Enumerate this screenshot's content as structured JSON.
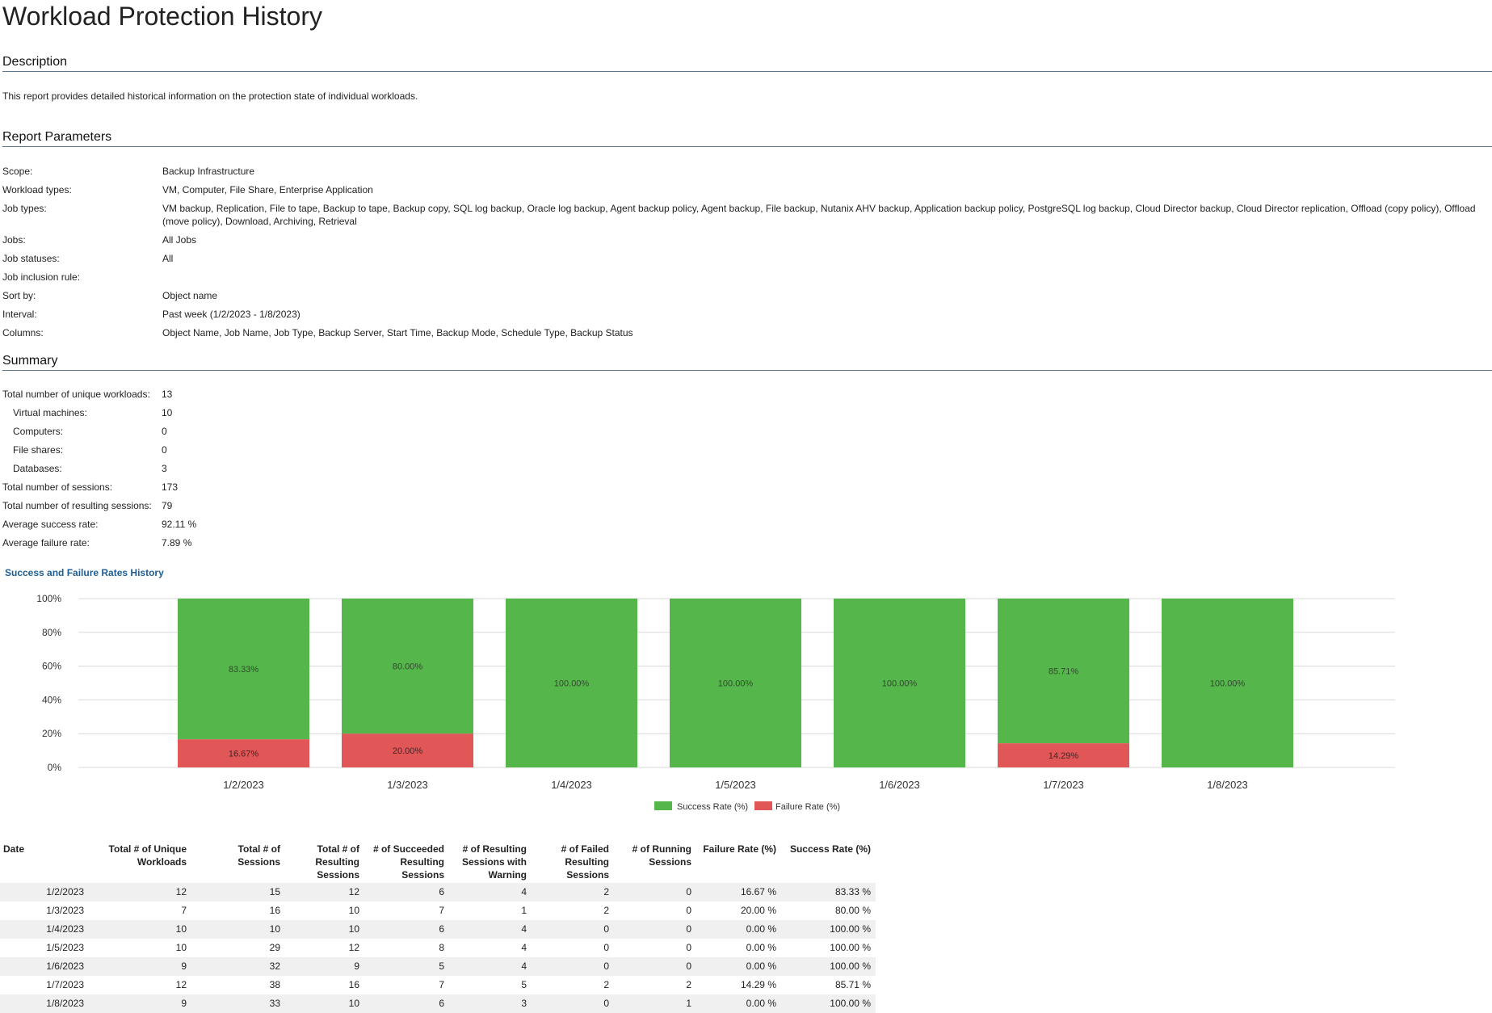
{
  "page": {
    "title": "Workload Protection History"
  },
  "description": {
    "heading": "Description",
    "text": "This report provides detailed historical information on the protection state of individual workloads."
  },
  "parameters": {
    "heading": "Report Parameters",
    "rows": [
      {
        "label": "Scope:",
        "value": "Backup Infrastructure"
      },
      {
        "label": "Workload types:",
        "value": "VM, Computer, File Share, Enterprise Application"
      },
      {
        "label": "Job types:",
        "value": "VM backup, Replication, File to tape, Backup to tape, Backup copy, SQL log backup, Oracle log backup, Agent backup policy, Agent backup, File backup, Nutanix AHV backup, Application backup policy, PostgreSQL log backup, Cloud Director backup, Cloud Director replication, Offload (copy policy), Offload (move policy), Download, Archiving, Retrieval"
      },
      {
        "label": "Jobs:",
        "value": "All Jobs"
      },
      {
        "label": "Job statuses:",
        "value": "All"
      },
      {
        "label": "Job inclusion rule:",
        "value": ""
      },
      {
        "label": "Sort by:",
        "value": "Object name"
      },
      {
        "label": "Interval:",
        "value": "Past week (1/2/2023 - 1/8/2023)"
      },
      {
        "label": "Columns:",
        "value": "Object Name, Job Name, Job Type, Backup Server, Start Time, Backup Mode, Schedule Type, Backup Status"
      }
    ]
  },
  "summary": {
    "heading": "Summary",
    "rows": [
      {
        "label": "Total number of unique workloads:",
        "value": "13",
        "indent": false
      },
      {
        "label": "Virtual machines:",
        "value": "10",
        "indent": true
      },
      {
        "label": "Computers:",
        "value": "0",
        "indent": true
      },
      {
        "label": "File shares:",
        "value": "0",
        "indent": true
      },
      {
        "label": "Databases:",
        "value": "3",
        "indent": true
      },
      {
        "label": "Total number of sessions:",
        "value": "173",
        "indent": false
      },
      {
        "label": "Total number of resulting sessions:",
        "value": "79",
        "indent": false
      },
      {
        "label": "Average success rate:",
        "value": "92.11 %",
        "indent": false
      },
      {
        "label": "Average failure rate:",
        "value": "7.89 %",
        "indent": false
      }
    ]
  },
  "colors": {
    "success": "#55b74b",
    "failure": "#e15758",
    "heading_rule": "#5a7a92",
    "chart_title": "#1c5e95"
  },
  "chart_data": {
    "type": "bar",
    "stacked": true,
    "title": "Success and Failure Rates History",
    "categories": [
      "1/2/2023",
      "1/3/2023",
      "1/4/2023",
      "1/5/2023",
      "1/6/2023",
      "1/7/2023",
      "1/8/2023"
    ],
    "series": [
      {
        "name": "Success Rate (%)",
        "values": [
          83.33,
          80.0,
          100.0,
          100.0,
          100.0,
          85.71,
          100.0
        ],
        "labels": [
          "83.33%",
          "80.00%",
          "100.00%",
          "100.00%",
          "100.00%",
          "85.71%",
          "100.00%"
        ]
      },
      {
        "name": "Failure Rate (%)",
        "values": [
          16.67,
          20.0,
          0,
          0,
          0,
          14.29,
          0
        ],
        "labels": [
          "16.67%",
          "20.00%",
          "",
          "",
          "",
          "14.29%",
          ""
        ]
      }
    ],
    "y_ticks": [
      "0%",
      "20%",
      "40%",
      "60%",
      "80%",
      "100%"
    ],
    "ylim": [
      0,
      100
    ],
    "grid": true,
    "legend_position": "bottom"
  },
  "table": {
    "headers": [
      "Date",
      "Total # of Unique Workloads",
      "Total # of Sessions",
      "Total # of Resulting Sessions",
      "# of Succeeded Resulting Sessions",
      "# of Resulting Sessions with Warning",
      "# of Failed Resulting Sessions",
      "# of Running Sessions",
      "Failure Rate (%)",
      "Success Rate (%)"
    ],
    "rows": [
      [
        "1/2/2023",
        "12",
        "15",
        "12",
        "6",
        "4",
        "2",
        "0",
        "16.67 %",
        "83.33 %"
      ],
      [
        "1/3/2023",
        "7",
        "16",
        "10",
        "7",
        "1",
        "2",
        "0",
        "20.00 %",
        "80.00 %"
      ],
      [
        "1/4/2023",
        "10",
        "10",
        "10",
        "6",
        "4",
        "0",
        "0",
        "0.00 %",
        "100.00 %"
      ],
      [
        "1/5/2023",
        "10",
        "29",
        "12",
        "8",
        "4",
        "0",
        "0",
        "0.00 %",
        "100.00 %"
      ],
      [
        "1/6/2023",
        "9",
        "32",
        "9",
        "5",
        "4",
        "0",
        "0",
        "0.00 %",
        "100.00 %"
      ],
      [
        "1/7/2023",
        "12",
        "38",
        "16",
        "7",
        "5",
        "2",
        "2",
        "14.29 %",
        "85.71 %"
      ],
      [
        "1/8/2023",
        "9",
        "33",
        "10",
        "6",
        "3",
        "0",
        "1",
        "0.00 %",
        "100.00 %"
      ]
    ]
  }
}
